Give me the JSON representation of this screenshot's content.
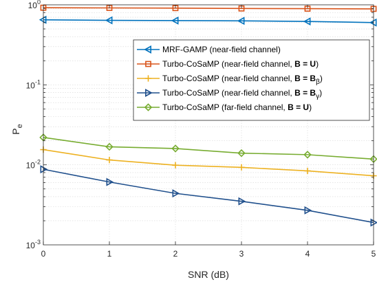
{
  "chart_data": {
    "type": "line",
    "xlabel": "SNR (dB)",
    "ylabel": "P_e",
    "ylabel_main": "P",
    "ylabel_sub": "e",
    "yscale": "log",
    "xlim": [
      0,
      5
    ],
    "ylim": [
      0.001,
      1
    ],
    "grid": true,
    "legend_position": "upper-right",
    "x": [
      0,
      1,
      2,
      3,
      4,
      5
    ],
    "x_tick_labels": [
      "0",
      "1",
      "2",
      "3",
      "4",
      "5"
    ],
    "y_ticks": [
      {
        "value": 0.001,
        "base": "10",
        "exp": "-3"
      },
      {
        "value": 0.01,
        "base": "10",
        "exp": "-2"
      },
      {
        "value": 0.1,
        "base": "10",
        "exp": "-1"
      },
      {
        "value": 1,
        "base": "10",
        "exp": "0"
      }
    ],
    "series": [
      {
        "name": "MRF-GAMP (near-field channel)",
        "legend": {
          "pre": "MRF-GAMP (near-field channel)",
          "bold": "",
          "sub": "",
          "post": ""
        },
        "color": "#0072BD",
        "marker": "triangle-left",
        "values": [
          0.65,
          0.64,
          0.635,
          0.63,
          0.62,
          0.6
        ]
      },
      {
        "name": "Turbo-CoSaMP (near-field channel, B = U)",
        "legend": {
          "pre": "Turbo-CoSaMP (near-field channel,  ",
          "bold": "B = U",
          "sub": "",
          "post": ")"
        },
        "color": "#D95319",
        "marker": "square",
        "values": [
          0.92,
          0.915,
          0.91,
          0.9,
          0.895,
          0.89
        ]
      },
      {
        "name": "Turbo-CoSaMP (near-field channel, B = Bβ)",
        "legend": {
          "pre": "Turbo-CoSaMP (near-field channel,  ",
          "bold": "B = B",
          "sub": "β",
          "post": ")"
        },
        "color": "#EDB120",
        "marker": "plus",
        "values": [
          0.0155,
          0.0115,
          0.0099,
          0.0093,
          0.0084,
          0.0073
        ]
      },
      {
        "name": "Turbo-CoSaMP (near-field channel, B = Bγ)",
        "legend": {
          "pre": "Turbo-CoSaMP (near-field channel,  ",
          "bold": "B = B",
          "sub": "γ",
          "post": ")"
        },
        "color": "#1F4F8C",
        "marker": "triangle-right",
        "values": [
          0.0088,
          0.0061,
          0.0044,
          0.0035,
          0.0027,
          0.0019
        ]
      },
      {
        "name": "Turbo-CoSaMP (far-field channel, B = U)",
        "legend": {
          "pre": "Turbo-CoSaMP (far-field channel,  ",
          "bold": "B = U",
          "sub": "",
          "post": ")"
        },
        "color": "#77AC30",
        "marker": "diamond",
        "values": [
          0.022,
          0.0168,
          0.016,
          0.014,
          0.0134,
          0.0118
        ]
      }
    ]
  }
}
